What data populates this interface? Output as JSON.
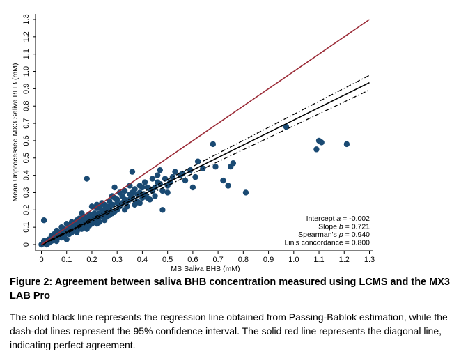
{
  "chart_data": {
    "type": "scatter",
    "title": "",
    "xlabel": "MS Saliva BHB (mM)",
    "ylabel": "Mean Unprocessed MX3 Saliva BHB (mM)",
    "xlim": [
      0,
      1.3
    ],
    "ylim": [
      0,
      1.3
    ],
    "x_ticks": [
      "0",
      "0.1",
      "0.2",
      "0.3",
      "0.4",
      "0.5",
      "0.6",
      "0.7",
      "0.8",
      "0.9",
      "1.0",
      "1.1",
      "1.2",
      "1.3"
    ],
    "y_ticks": [
      "0",
      "0.1",
      "0.2",
      "0.3",
      "0.4",
      "0.5",
      "0.6",
      "0.7",
      "0.8",
      "0.9",
      "1.0",
      "1.1",
      "1.2",
      "1.3"
    ],
    "grid": false,
    "point_color": "#1a4a73",
    "points": [
      [
        0.68,
        0.58
      ],
      [
        0.97,
        0.68
      ],
      [
        1.1,
        0.6
      ],
      [
        1.11,
        0.59
      ],
      [
        1.09,
        0.55
      ],
      [
        1.21,
        0.58
      ],
      [
        0.81,
        0.3
      ],
      [
        0.72,
        0.37
      ],
      [
        0.75,
        0.45
      ],
      [
        0.69,
        0.45
      ],
      [
        0.74,
        0.34
      ],
      [
        0.76,
        0.47
      ],
      [
        0.62,
        0.48
      ],
      [
        0.59,
        0.43
      ],
      [
        0.61,
        0.39
      ],
      [
        0.64,
        0.44
      ],
      [
        0.6,
        0.33
      ],
      [
        0.57,
        0.37
      ],
      [
        0.56,
        0.41
      ],
      [
        0.36,
        0.42
      ],
      [
        0.18,
        0.38
      ],
      [
        0.01,
        0.14
      ],
      [
        0.47,
        0.43
      ],
      [
        0.52,
        0.39
      ],
      [
        0.48,
        0.2
      ],
      [
        0.5,
        0.34
      ],
      [
        0.46,
        0.36
      ],
      [
        0.44,
        0.31
      ],
      [
        0.42,
        0.33
      ],
      [
        0.4,
        0.33
      ],
      [
        0.39,
        0.24
      ],
      [
        0.43,
        0.26
      ],
      [
        0.45,
        0.28
      ],
      [
        0.35,
        0.34
      ],
      [
        0.33,
        0.31
      ],
      [
        0.32,
        0.28
      ],
      [
        0.31,
        0.22
      ],
      [
        0.34,
        0.25
      ],
      [
        0.36,
        0.27
      ],
      [
        0.38,
        0.29
      ],
      [
        0.41,
        0.29
      ],
      [
        0.37,
        0.23
      ],
      [
        0.29,
        0.19
      ],
      [
        0.3,
        0.24
      ],
      [
        0.28,
        0.23
      ],
      [
        0.27,
        0.21
      ],
      [
        0.26,
        0.19
      ],
      [
        0.25,
        0.2
      ],
      [
        0.24,
        0.16
      ],
      [
        0.23,
        0.18
      ],
      [
        0.22,
        0.21
      ],
      [
        0.21,
        0.14
      ],
      [
        0.2,
        0.17
      ],
      [
        0.19,
        0.15
      ],
      [
        0.18,
        0.13
      ],
      [
        0.17,
        0.1
      ],
      [
        0.16,
        0.14
      ],
      [
        0.15,
        0.12
      ],
      [
        0.14,
        0.11
      ],
      [
        0.13,
        0.08
      ],
      [
        0.12,
        0.1
      ],
      [
        0.11,
        0.06
      ],
      [
        0.1,
        0.08
      ],
      [
        0.09,
        0.05
      ],
      [
        0.08,
        0.07
      ],
      [
        0.07,
        0.04
      ],
      [
        0.06,
        0.05
      ],
      [
        0.05,
        0.03
      ],
      [
        0.04,
        0.02
      ],
      [
        0.03,
        0.03
      ],
      [
        0.02,
        0.01
      ],
      [
        0.01,
        0.01
      ],
      [
        0.0,
        0.0
      ],
      [
        0.02,
        0.0
      ],
      [
        0.03,
        0.01
      ],
      [
        0.05,
        0.06
      ],
      [
        0.07,
        0.07
      ],
      [
        0.09,
        0.09
      ],
      [
        0.11,
        0.1
      ],
      [
        0.13,
        0.12
      ],
      [
        0.15,
        0.15
      ],
      [
        0.17,
        0.16
      ],
      [
        0.19,
        0.17
      ],
      [
        0.21,
        0.18
      ],
      [
        0.23,
        0.22
      ],
      [
        0.25,
        0.23
      ],
      [
        0.27,
        0.25
      ],
      [
        0.29,
        0.27
      ],
      [
        0.31,
        0.3
      ],
      [
        0.33,
        0.26
      ],
      [
        0.35,
        0.29
      ],
      [
        0.37,
        0.32
      ],
      [
        0.39,
        0.3
      ],
      [
        0.41,
        0.36
      ],
      [
        0.43,
        0.32
      ],
      [
        0.45,
        0.33
      ],
      [
        0.47,
        0.35
      ],
      [
        0.49,
        0.38
      ],
      [
        0.51,
        0.36
      ],
      [
        0.53,
        0.42
      ],
      [
        0.55,
        0.4
      ],
      [
        0.29,
        0.33
      ],
      [
        0.24,
        0.24
      ],
      [
        0.2,
        0.22
      ],
      [
        0.16,
        0.18
      ],
      [
        0.12,
        0.13
      ],
      [
        0.08,
        0.1
      ],
      [
        0.06,
        0.02
      ],
      [
        0.1,
        0.03
      ],
      [
        0.14,
        0.07
      ],
      [
        0.18,
        0.09
      ],
      [
        0.22,
        0.12
      ],
      [
        0.26,
        0.16
      ],
      [
        0.3,
        0.2
      ],
      [
        0.34,
        0.22
      ],
      [
        0.38,
        0.25
      ],
      [
        0.42,
        0.27
      ],
      [
        0.04,
        0.05
      ],
      [
        0.06,
        0.08
      ],
      [
        0.08,
        0.04
      ],
      [
        0.1,
        0.12
      ],
      [
        0.12,
        0.07
      ],
      [
        0.14,
        0.14
      ],
      [
        0.16,
        0.09
      ],
      [
        0.18,
        0.15
      ],
      [
        0.2,
        0.12
      ],
      [
        0.22,
        0.15
      ],
      [
        0.24,
        0.2
      ],
      [
        0.26,
        0.22
      ],
      [
        0.28,
        0.18
      ],
      [
        0.32,
        0.24
      ],
      [
        0.36,
        0.3
      ],
      [
        0.4,
        0.27
      ],
      [
        0.44,
        0.38
      ],
      [
        0.48,
        0.31
      ],
      [
        0.5,
        0.3
      ],
      [
        0.46,
        0.4
      ],
      [
        0.3,
        0.26
      ],
      [
        0.27,
        0.17
      ],
      [
        0.25,
        0.14
      ],
      [
        0.23,
        0.13
      ],
      [
        0.19,
        0.11
      ],
      [
        0.15,
        0.09
      ],
      [
        0.11,
        0.08
      ],
      [
        0.07,
        0.06
      ],
      [
        0.03,
        0.02
      ],
      [
        0.01,
        0.02
      ],
      [
        0.02,
        0.02
      ],
      [
        0.04,
        0.03
      ],
      [
        0.09,
        0.07
      ],
      [
        0.13,
        0.1
      ],
      [
        0.17,
        0.12
      ],
      [
        0.21,
        0.16
      ],
      [
        0.25,
        0.18
      ],
      [
        0.33,
        0.2
      ],
      [
        0.28,
        0.28
      ],
      [
        0.22,
        0.23
      ],
      [
        0.35,
        0.26
      ],
      [
        0.39,
        0.34
      ]
    ],
    "lines": [
      {
        "name": "Passing-Bablok regression",
        "style": "solid",
        "color": "#000000",
        "intercept": -0.002,
        "slope": 0.721
      },
      {
        "name": "95% CI upper",
        "style": "dashdot",
        "color": "#000000",
        "intercept": 0.0,
        "slope": 0.752
      },
      {
        "name": "95% CI lower",
        "style": "dashdot",
        "color": "#000000",
        "intercept": -0.004,
        "slope": 0.69
      },
      {
        "name": "Line of identity",
        "style": "solid",
        "color": "#9b2a36",
        "intercept": 0.0,
        "slope": 1.0
      }
    ],
    "annotations": [
      {
        "label": "Intercept ",
        "italic": "a",
        "value": " = -0.002"
      },
      {
        "label": "Slope ",
        "italic": "b",
        "value": " = 0.721"
      },
      {
        "label": "Spearman's ",
        "italic": "ρ",
        "value": " = 0.940"
      },
      {
        "label": "Lin's concordance",
        "italic": "",
        "value": " = 0.800"
      }
    ],
    "annotation_position": "bottom-right"
  },
  "caption": {
    "title": "Figure 2: Agreement between saliva BHB concentration measured using LCMS and the MX3 LAB Pro",
    "body": "The solid black line represents the regression line obtained from Passing-Bablok estimation, while the dash-dot lines represent the 95% confidence interval. The solid red line represents the diagonal line, indicating perfect agreement."
  }
}
